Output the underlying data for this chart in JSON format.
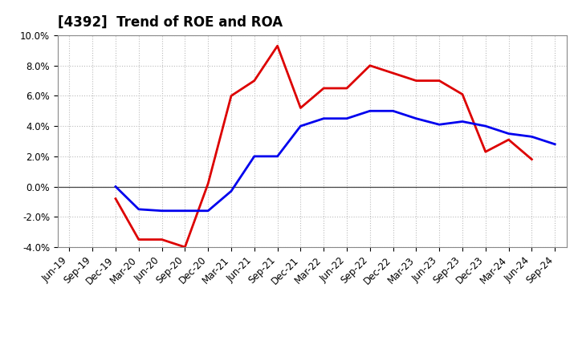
{
  "title": "[4392]  Trend of ROE and ROA",
  "dates": [
    "Jun-19",
    "Sep-19",
    "Dec-19",
    "Mar-20",
    "Jun-20",
    "Sep-20",
    "Dec-20",
    "Mar-21",
    "Jun-21",
    "Sep-21",
    "Dec-21",
    "Mar-22",
    "Jun-22",
    "Sep-22",
    "Dec-22",
    "Mar-23",
    "Jun-23",
    "Sep-23",
    "Dec-23",
    "Mar-24",
    "Jun-24",
    "Sep-24"
  ],
  "roe_values": [
    null,
    null,
    -0.8,
    -3.5,
    -3.5,
    -4.0,
    0.2,
    6.0,
    7.0,
    9.3,
    5.2,
    6.5,
    6.5,
    8.0,
    7.5,
    7.0,
    7.0,
    6.1,
    2.3,
    3.1,
    1.8,
    null
  ],
  "roa_values": [
    null,
    null,
    0.0,
    -1.5,
    -1.6,
    -1.6,
    -1.6,
    -0.3,
    2.0,
    2.0,
    4.0,
    4.5,
    4.5,
    5.0,
    5.0,
    4.5,
    4.1,
    4.3,
    4.0,
    3.5,
    3.3,
    2.8
  ],
  "roe_color": "#dd0000",
  "roa_color": "#0000ee",
  "line_width": 2.0,
  "ylim": [
    -4.0,
    10.0
  ],
  "yticks": [
    -4.0,
    -2.0,
    0.0,
    2.0,
    4.0,
    6.0,
    8.0,
    10.0
  ],
  "background_color": "#ffffff",
  "grid_color": "#bbbbbb",
  "title_fontsize": 12,
  "legend_fontsize": 10,
  "tick_fontsize": 8.5
}
